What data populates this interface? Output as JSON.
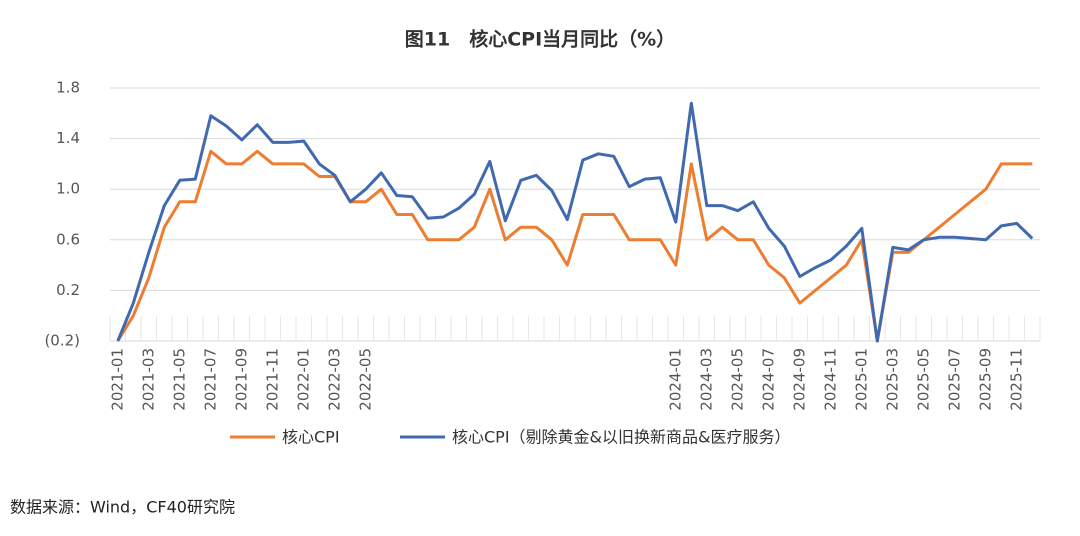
{
  "chart_data": {
    "type": "line",
    "title": "图11　核心CPI当月同比（%）",
    "source": "数据来源：Wind，CF40研究院",
    "categories": [
      "2021-01",
      null,
      "2021-03",
      null,
      "2021-05",
      null,
      "2021-07",
      null,
      "2021-09",
      null,
      "2021-11",
      null,
      "2022-01",
      null,
      "2022-03",
      null,
      "2022-05",
      null,
      null,
      null,
      null,
      null,
      null,
      null,
      null,
      null,
      null,
      null,
      null,
      null,
      null,
      null,
      null,
      null,
      null,
      null,
      "2024-01",
      null,
      "2024-03",
      null,
      "2024-05",
      null,
      "2024-07",
      null,
      "2024-09",
      null,
      "2024-11",
      null,
      "2025-01",
      null,
      "2025-03",
      null,
      "2025-05",
      null,
      "2025-07",
      null,
      "2025-09",
      null,
      "2025-11",
      null
    ],
    "series": [
      {
        "name": "核心CPI",
        "color": "#ED7D31",
        "values": [
          -0.2,
          0.0,
          0.3,
          0.7,
          0.9,
          0.9,
          1.3,
          1.2,
          1.2,
          1.3,
          1.2,
          1.2,
          1.2,
          1.1,
          1.1,
          0.9,
          0.9,
          1.0,
          0.8,
          0.8,
          0.6,
          0.6,
          0.6,
          0.7,
          1.0,
          0.6,
          0.7,
          0.7,
          0.6,
          0.4,
          0.8,
          0.8,
          0.8,
          0.6,
          0.6,
          0.6,
          0.4,
          1.2,
          0.6,
          0.7,
          0.6,
          0.6,
          0.4,
          0.3,
          0.1,
          0.2,
          0.3,
          0.4,
          0.6,
          -0.2,
          0.5,
          0.5,
          0.6,
          0.7,
          0.8,
          0.9,
          1.0,
          1.2,
          1.2,
          1.2
        ]
      },
      {
        "name": "核心CPI（剔除黄金&以旧换新商品&医疗服务）",
        "color": "#4169B0",
        "values": [
          -0.2,
          0.1,
          0.5,
          0.87,
          1.07,
          1.08,
          1.58,
          1.5,
          1.39,
          1.51,
          1.37,
          1.37,
          1.38,
          1.2,
          1.11,
          0.9,
          1.0,
          1.13,
          0.95,
          0.94,
          0.77,
          0.78,
          0.85,
          0.96,
          1.22,
          0.75,
          1.07,
          1.11,
          0.99,
          0.76,
          1.23,
          1.28,
          1.26,
          1.02,
          1.08,
          1.09,
          0.74,
          1.68,
          0.87,
          0.87,
          0.83,
          0.9,
          0.69,
          0.55,
          0.31,
          0.38,
          0.44,
          0.55,
          0.69,
          -0.2,
          0.54,
          0.52,
          0.6,
          0.62,
          0.62,
          0.61,
          0.6,
          0.71,
          0.73,
          0.61
        ]
      }
    ],
    "ylim": [
      -0.2,
      1.8
    ],
    "yticks": [
      {
        "value": -0.2,
        "label": "(0.2)"
      },
      0.2,
      0.6,
      {
        "value": 1,
        "label": "1.0"
      },
      1.4,
      1.8
    ],
    "grid": true
  }
}
